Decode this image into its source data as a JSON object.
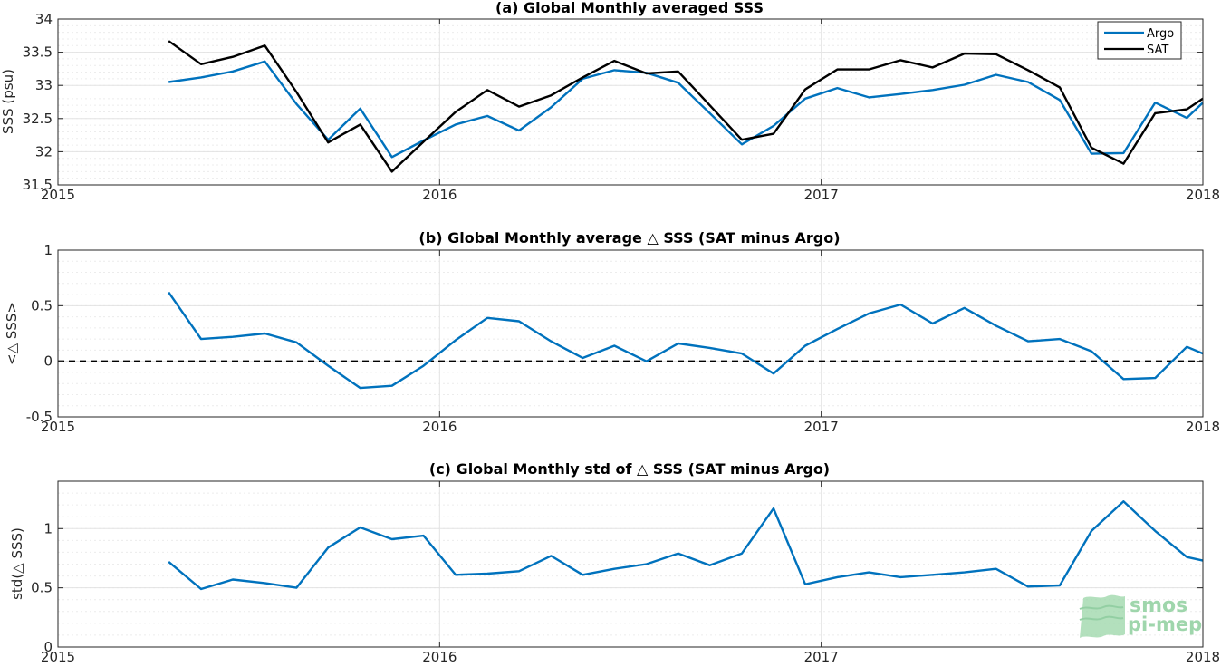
{
  "colors": {
    "argo": "#0072BD",
    "sat": "#000000",
    "grid": "#e3e3e3",
    "axis": "#262626"
  },
  "logo": {
    "line1": "smos",
    "line2": "pi-mep",
    "icon": "smos-pimep-logo-icon"
  },
  "chart_data": [
    {
      "id": "a",
      "type": "line",
      "title": "(a) Global Monthly averaged SSS",
      "xlabel": "",
      "ylabel": "SSS (psu)",
      "xlim": [
        2015,
        2018
      ],
      "ylim": [
        31.5,
        34
      ],
      "xticks": [
        2015,
        2016,
        2017,
        2018
      ],
      "xtick_labels": [
        "2015",
        "2016",
        "2017",
        "2018"
      ],
      "yticks": [
        31.5,
        32,
        32.5,
        33,
        33.5,
        34
      ],
      "ytick_labels": [
        "31.5",
        "32",
        "32.5",
        "33",
        "33.5",
        "34"
      ],
      "grid": true,
      "legend": "top-right",
      "x": [
        2015.29,
        2015.375,
        2015.458,
        2015.542,
        2015.625,
        2015.708,
        2015.792,
        2015.875,
        2015.958,
        2016.042,
        2016.125,
        2016.208,
        2016.292,
        2016.375,
        2016.458,
        2016.542,
        2016.625,
        2016.708,
        2016.792,
        2016.875,
        2016.958,
        2017.042,
        2017.125,
        2017.208,
        2017.292,
        2017.375,
        2017.458,
        2017.542,
        2017.625,
        2017.708,
        2017.792,
        2017.875,
        2017.958,
        2018.0
      ],
      "series": [
        {
          "name": "Argo",
          "color": "#0072BD",
          "values": [
            33.05,
            33.12,
            33.21,
            33.36,
            32.72,
            32.18,
            32.65,
            31.92,
            32.17,
            32.41,
            32.54,
            32.32,
            32.67,
            33.1,
            33.23,
            33.19,
            33.04,
            32.58,
            32.11,
            32.39,
            32.8,
            32.96,
            32.82,
            32.87,
            32.93,
            33.01,
            33.16,
            33.05,
            32.78,
            31.97,
            31.98,
            32.74,
            32.51,
            32.74
          ]
        },
        {
          "name": "SAT",
          "color": "#000000",
          "values": [
            33.67,
            33.32,
            33.43,
            33.6,
            32.9,
            32.14,
            32.41,
            31.7,
            32.15,
            32.6,
            32.93,
            32.68,
            32.85,
            33.12,
            33.37,
            33.18,
            33.21,
            32.7,
            32.18,
            32.27,
            32.94,
            33.24,
            33.24,
            33.38,
            33.27,
            33.48,
            33.47,
            33.23,
            32.97,
            32.06,
            31.82,
            32.58,
            32.64,
            32.8
          ]
        }
      ]
    },
    {
      "id": "b",
      "type": "line",
      "title": "(b) Global Monthly average △ SSS (SAT minus Argo)",
      "xlabel": "",
      "ylabel": "<△ SSS>",
      "xlim": [
        2015,
        2018
      ],
      "ylim": [
        -0.5,
        1
      ],
      "xticks": [
        2015,
        2016,
        2017,
        2018
      ],
      "xtick_labels": [
        "2015",
        "2016",
        "2017",
        "2018"
      ],
      "yticks": [
        -0.5,
        0,
        0.5,
        1
      ],
      "ytick_labels": [
        "-0.5",
        "0",
        "0.5",
        "1"
      ],
      "grid": true,
      "reference_line": {
        "y": 0,
        "style": "dashed",
        "color": "#000000"
      },
      "x": [
        2015.29,
        2015.375,
        2015.458,
        2015.542,
        2015.625,
        2015.708,
        2015.792,
        2015.875,
        2015.958,
        2016.042,
        2016.125,
        2016.208,
        2016.292,
        2016.375,
        2016.458,
        2016.542,
        2016.625,
        2016.708,
        2016.792,
        2016.875,
        2016.958,
        2017.042,
        2017.125,
        2017.208,
        2017.292,
        2017.375,
        2017.458,
        2017.542,
        2017.625,
        2017.708,
        2017.792,
        2017.875,
        2017.958,
        2018.0
      ],
      "series": [
        {
          "color": "#0072BD",
          "values": [
            0.62,
            0.2,
            0.22,
            0.25,
            0.17,
            -0.04,
            -0.24,
            -0.22,
            -0.04,
            0.19,
            0.39,
            0.36,
            0.18,
            0.03,
            0.14,
            0.0,
            0.16,
            0.12,
            0.07,
            -0.11,
            0.14,
            0.29,
            0.43,
            0.51,
            0.34,
            0.48,
            0.32,
            0.18,
            0.2,
            0.09,
            -0.16,
            -0.15,
            0.13,
            0.07
          ]
        }
      ]
    },
    {
      "id": "c",
      "type": "line",
      "title": "(c) Global Monthly std of △ SSS (SAT minus Argo)",
      "xlabel": "",
      "ylabel": "std(△ SSS)",
      "xlim": [
        2015,
        2018
      ],
      "ylim": [
        0,
        1.4
      ],
      "xticks": [
        2015,
        2016,
        2017,
        2018
      ],
      "xtick_labels": [
        "2015",
        "2016",
        "2017",
        "2018"
      ],
      "yticks": [
        0,
        0.5,
        1
      ],
      "ytick_labels": [
        "0",
        "0.5",
        "1"
      ],
      "grid": true,
      "x": [
        2015.29,
        2015.375,
        2015.458,
        2015.542,
        2015.625,
        2015.708,
        2015.792,
        2015.875,
        2015.958,
        2016.042,
        2016.125,
        2016.208,
        2016.292,
        2016.375,
        2016.458,
        2016.542,
        2016.625,
        2016.708,
        2016.792,
        2016.875,
        2016.958,
        2017.042,
        2017.125,
        2017.208,
        2017.292,
        2017.375,
        2017.458,
        2017.542,
        2017.625,
        2017.708,
        2017.792,
        2017.875,
        2017.958,
        2018.0
      ],
      "series": [
        {
          "color": "#0072BD",
          "values": [
            0.72,
            0.49,
            0.57,
            0.54,
            0.5,
            0.84,
            1.01,
            0.91,
            0.94,
            0.61,
            0.62,
            0.64,
            0.77,
            0.61,
            0.66,
            0.7,
            0.79,
            0.69,
            0.79,
            1.17,
            0.53,
            0.59,
            0.63,
            0.59,
            0.61,
            0.63,
            0.66,
            0.51,
            0.52,
            0.98,
            1.23,
            0.98,
            0.76,
            0.73
          ]
        }
      ]
    }
  ]
}
